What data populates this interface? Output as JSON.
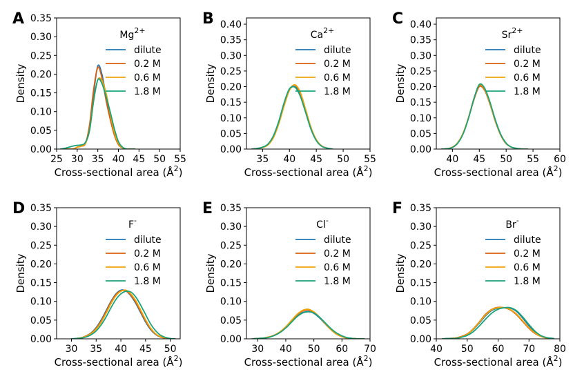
{
  "figure": {
    "width": 830,
    "height": 555
  },
  "chart_data": [
    {
      "type": "line",
      "panel_label": "A",
      "title": "Mg$^{2+}$",
      "xlabel": "Cross-sectional area (Å$^2$)",
      "ylabel": "Density",
      "xlim": [
        25,
        55
      ],
      "ylim": [
        0,
        0.35
      ],
      "xticks": [
        "25",
        "30",
        "35",
        "40",
        "45",
        "50",
        "55"
      ],
      "yticks": [
        "0.00",
        "0.05",
        "0.10",
        "0.15",
        "0.20",
        "0.25",
        "0.30",
        "0.35"
      ],
      "x": [
        26,
        27,
        28,
        29,
        30,
        31,
        32,
        33,
        34,
        35,
        36,
        37,
        38,
        39,
        40,
        41,
        42,
        43,
        44
      ],
      "series": [
        {
          "name": "dilute",
          "color": "#1f77b4",
          "values": [
            0.0,
            0.0,
            0.0,
            0.0,
            0.005,
            0.008,
            0.015,
            0.06,
            0.15,
            0.222,
            0.2,
            0.14,
            0.085,
            0.04,
            0.015,
            0.003,
            0.0,
            0.0,
            0.0
          ]
        },
        {
          "name": "0.2 M",
          "color": "#d95f0e",
          "values": [
            0.0,
            0.0,
            0.0,
            0.0,
            0.005,
            0.008,
            0.015,
            0.065,
            0.16,
            0.218,
            0.19,
            0.13,
            0.08,
            0.038,
            0.012,
            0.003,
            0.0,
            0.0,
            0.0
          ]
        },
        {
          "name": "0.6 M",
          "color": "#f0a30a",
          "values": [
            0.0,
            0.0,
            0.0,
            0.0,
            0.005,
            0.008,
            0.015,
            0.05,
            0.13,
            0.185,
            0.183,
            0.15,
            0.095,
            0.045,
            0.015,
            0.003,
            0.0,
            0.0,
            0.0
          ]
        },
        {
          "name": "1.8 M",
          "color": "#1aa37a",
          "values": [
            0.0,
            0.002,
            0.005,
            0.008,
            0.01,
            0.011,
            0.018,
            0.05,
            0.13,
            0.185,
            0.175,
            0.14,
            0.1,
            0.055,
            0.02,
            0.005,
            0.0,
            0.0,
            0.0
          ]
        }
      ]
    },
    {
      "type": "line",
      "panel_label": "B",
      "title": "Ca$^{2+}$",
      "xlabel": "Cross-sectional area (Å$^2$)",
      "ylabel": "Density",
      "xlim": [
        32,
        55
      ],
      "ylim": [
        0,
        0.42
      ],
      "xticks": [
        "35",
        "40",
        "45",
        "50",
        "55"
      ],
      "yticks": [
        "0.00",
        "0.05",
        "0.10",
        "0.15",
        "0.20",
        "0.25",
        "0.30",
        "0.35",
        "0.40"
      ],
      "x": [
        33,
        34,
        35,
        36,
        37,
        38,
        39,
        40,
        41,
        42,
        43,
        44,
        45,
        46,
        47,
        48
      ],
      "series": [
        {
          "name": "dilute",
          "color": "#1f77b4",
          "values": [
            0.0,
            0.002,
            0.006,
            0.015,
            0.04,
            0.085,
            0.145,
            0.19,
            0.2,
            0.175,
            0.12,
            0.065,
            0.028,
            0.01,
            0.003,
            0.0
          ]
        },
        {
          "name": "0.2 M",
          "color": "#d95f0e",
          "values": [
            0.0,
            0.002,
            0.006,
            0.014,
            0.038,
            0.082,
            0.14,
            0.19,
            0.205,
            0.18,
            0.125,
            0.068,
            0.03,
            0.01,
            0.003,
            0.0
          ]
        },
        {
          "name": "0.6 M",
          "color": "#f0a30a",
          "values": [
            0.0,
            0.002,
            0.005,
            0.013,
            0.036,
            0.08,
            0.138,
            0.188,
            0.206,
            0.183,
            0.128,
            0.07,
            0.03,
            0.01,
            0.003,
            0.0
          ]
        },
        {
          "name": "1.8 M",
          "color": "#1aa37a",
          "values": [
            0.0,
            0.002,
            0.006,
            0.016,
            0.042,
            0.088,
            0.148,
            0.193,
            0.198,
            0.17,
            0.118,
            0.064,
            0.027,
            0.009,
            0.003,
            0.0
          ]
        }
      ]
    },
    {
      "type": "line",
      "panel_label": "C",
      "title": "Sr$^{2+}$",
      "xlabel": "Cross-sectional area (Å$^2$)",
      "ylabel": "Density",
      "xlim": [
        37,
        60
      ],
      "ylim": [
        0,
        0.42
      ],
      "xticks": [
        "40",
        "45",
        "50",
        "55",
        "60"
      ],
      "yticks": [
        "0.00",
        "0.05",
        "0.10",
        "0.15",
        "0.20",
        "0.25",
        "0.30",
        "0.35",
        "0.40"
      ],
      "x": [
        38,
        39,
        40,
        41,
        42,
        43,
        44,
        45,
        46,
        47,
        48,
        49,
        50,
        51,
        52,
        53,
        54
      ],
      "series": [
        {
          "name": "dilute",
          "color": "#1f77b4",
          "values": [
            0.0,
            0.001,
            0.006,
            0.02,
            0.05,
            0.1,
            0.16,
            0.203,
            0.19,
            0.145,
            0.09,
            0.045,
            0.018,
            0.006,
            0.002,
            0.0,
            0.0
          ]
        },
        {
          "name": "0.2 M",
          "color": "#d95f0e",
          "values": [
            0.0,
            0.001,
            0.006,
            0.02,
            0.05,
            0.1,
            0.158,
            0.2,
            0.188,
            0.143,
            0.088,
            0.044,
            0.017,
            0.006,
            0.002,
            0.0,
            0.0
          ]
        },
        {
          "name": "0.6 M",
          "color": "#f0a30a",
          "values": [
            0.0,
            0.001,
            0.006,
            0.021,
            0.052,
            0.102,
            0.162,
            0.205,
            0.192,
            0.146,
            0.09,
            0.045,
            0.018,
            0.006,
            0.002,
            0.0,
            0.0
          ]
        },
        {
          "name": "1.8 M",
          "color": "#1aa37a",
          "values": [
            0.0,
            0.001,
            0.005,
            0.019,
            0.049,
            0.099,
            0.161,
            0.207,
            0.195,
            0.15,
            0.093,
            0.047,
            0.019,
            0.006,
            0.002,
            0.0,
            0.0
          ]
        }
      ]
    },
    {
      "type": "line",
      "panel_label": "D",
      "title": "F$^-$",
      "xlabel": "Cross-sectional area (Å$^2$)",
      "ylabel": "Density",
      "xlim": [
        27,
        52
      ],
      "ylim": [
        0,
        0.35
      ],
      "xticks": [
        "30",
        "35",
        "40",
        "45",
        "50"
      ],
      "yticks": [
        "0.00",
        "0.05",
        "0.10",
        "0.15",
        "0.20",
        "0.25",
        "0.30",
        "0.35"
      ],
      "x": [
        30,
        31,
        32,
        33,
        34,
        35,
        36,
        37,
        38,
        39,
        40,
        41,
        42,
        43,
        44,
        45,
        46,
        47,
        48,
        49,
        50,
        51
      ],
      "series": [
        {
          "name": "dilute",
          "color": "#1f77b4",
          "values": [
            0.0,
            0.001,
            0.003,
            0.008,
            0.016,
            0.03,
            0.05,
            0.075,
            0.1,
            0.12,
            0.13,
            0.128,
            0.115,
            0.095,
            0.07,
            0.045,
            0.025,
            0.012,
            0.005,
            0.002,
            0.0,
            0.0
          ]
        },
        {
          "name": "0.2 M",
          "color": "#d95f0e",
          "values": [
            0.0,
            0.001,
            0.003,
            0.008,
            0.015,
            0.028,
            0.047,
            0.072,
            0.098,
            0.118,
            0.128,
            0.128,
            0.117,
            0.098,
            0.073,
            0.048,
            0.027,
            0.013,
            0.005,
            0.002,
            0.0,
            0.0
          ]
        },
        {
          "name": "0.6 M",
          "color": "#f0a30a",
          "values": [
            0.0,
            0.001,
            0.003,
            0.007,
            0.014,
            0.026,
            0.044,
            0.068,
            0.094,
            0.115,
            0.127,
            0.13,
            0.12,
            0.102,
            0.077,
            0.051,
            0.029,
            0.014,
            0.006,
            0.002,
            0.0,
            0.0
          ]
        },
        {
          "name": "1.8 M",
          "color": "#1aa37a",
          "values": [
            0.0,
            0.001,
            0.002,
            0.005,
            0.011,
            0.021,
            0.037,
            0.058,
            0.083,
            0.105,
            0.12,
            0.127,
            0.125,
            0.112,
            0.09,
            0.065,
            0.04,
            0.022,
            0.01,
            0.004,
            0.001,
            0.0
          ]
        }
      ]
    },
    {
      "type": "line",
      "panel_label": "E",
      "title": "Cl$^-$",
      "xlabel": "Cross-sectional area (Å$^2$)",
      "ylabel": "Density",
      "xlim": [
        26,
        70
      ],
      "ylim": [
        0,
        0.35
      ],
      "xticks": [
        "30",
        "40",
        "50",
        "60",
        "70"
      ],
      "yticks": [
        "0.00",
        "0.05",
        "0.10",
        "0.15",
        "0.20",
        "0.25",
        "0.30",
        "0.35"
      ],
      "x": [
        28,
        30,
        32,
        34,
        36,
        38,
        40,
        42,
        44,
        46,
        48,
        50,
        52,
        54,
        56,
        58,
        60,
        62,
        64,
        66,
        68
      ],
      "series": [
        {
          "name": "dilute",
          "color": "#1f77b4",
          "values": [
            0.0,
            0.001,
            0.002,
            0.005,
            0.01,
            0.018,
            0.03,
            0.045,
            0.06,
            0.07,
            0.073,
            0.068,
            0.056,
            0.04,
            0.025,
            0.013,
            0.006,
            0.002,
            0.001,
            0.0,
            0.0
          ]
        },
        {
          "name": "0.2 M",
          "color": "#d95f0e",
          "values": [
            0.0,
            0.001,
            0.002,
            0.005,
            0.01,
            0.019,
            0.032,
            0.048,
            0.064,
            0.074,
            0.077,
            0.071,
            0.058,
            0.041,
            0.025,
            0.013,
            0.006,
            0.002,
            0.001,
            0.0,
            0.0
          ]
        },
        {
          "name": "0.6 M",
          "color": "#f0a30a",
          "values": [
            0.0,
            0.001,
            0.002,
            0.005,
            0.01,
            0.019,
            0.032,
            0.049,
            0.065,
            0.076,
            0.079,
            0.072,
            0.058,
            0.041,
            0.025,
            0.013,
            0.006,
            0.002,
            0.001,
            0.0,
            0.0
          ]
        },
        {
          "name": "1.8 M",
          "color": "#1aa37a",
          "values": [
            0.0,
            0.001,
            0.002,
            0.004,
            0.009,
            0.017,
            0.029,
            0.044,
            0.059,
            0.069,
            0.072,
            0.069,
            0.058,
            0.043,
            0.028,
            0.016,
            0.008,
            0.003,
            0.001,
            0.0,
            0.0
          ]
        }
      ]
    },
    {
      "type": "line",
      "panel_label": "F",
      "title": "Br$^-$",
      "xlabel": "Cross-sectional area (Å$^2$)",
      "ylabel": "Density",
      "xlim": [
        40,
        80
      ],
      "ylim": [
        0,
        0.35
      ],
      "xticks": [
        "40",
        "50",
        "60",
        "70",
        "80"
      ],
      "yticks": [
        "0.00",
        "0.05",
        "0.10",
        "0.15",
        "0.20",
        "0.25",
        "0.30",
        "0.35"
      ],
      "x": [
        42,
        44,
        46,
        48,
        50,
        52,
        54,
        56,
        58,
        60,
        62,
        64,
        66,
        68,
        70,
        72,
        74,
        76,
        78
      ],
      "series": [
        {
          "name": "dilute",
          "color": "#1f77b4",
          "values": [
            0.0,
            0.001,
            0.002,
            0.005,
            0.012,
            0.025,
            0.043,
            0.062,
            0.076,
            0.082,
            0.083,
            0.082,
            0.073,
            0.055,
            0.035,
            0.018,
            0.007,
            0.002,
            0.0
          ]
        },
        {
          "name": "0.2 M",
          "color": "#d95f0e",
          "values": [
            0.0,
            0.001,
            0.002,
            0.006,
            0.013,
            0.027,
            0.046,
            0.066,
            0.079,
            0.084,
            0.083,
            0.077,
            0.064,
            0.046,
            0.028,
            0.014,
            0.006,
            0.002,
            0.0
          ]
        },
        {
          "name": "0.6 M",
          "color": "#f0a30a",
          "values": [
            0.0,
            0.001,
            0.002,
            0.005,
            0.012,
            0.026,
            0.045,
            0.064,
            0.078,
            0.083,
            0.083,
            0.078,
            0.066,
            0.048,
            0.03,
            0.015,
            0.006,
            0.002,
            0.0
          ]
        },
        {
          "name": "1.8 M",
          "color": "#1aa37a",
          "values": [
            0.0,
            0.001,
            0.001,
            0.004,
            0.009,
            0.019,
            0.035,
            0.053,
            0.069,
            0.079,
            0.083,
            0.083,
            0.075,
            0.058,
            0.038,
            0.02,
            0.008,
            0.003,
            0.001
          ]
        }
      ]
    }
  ]
}
